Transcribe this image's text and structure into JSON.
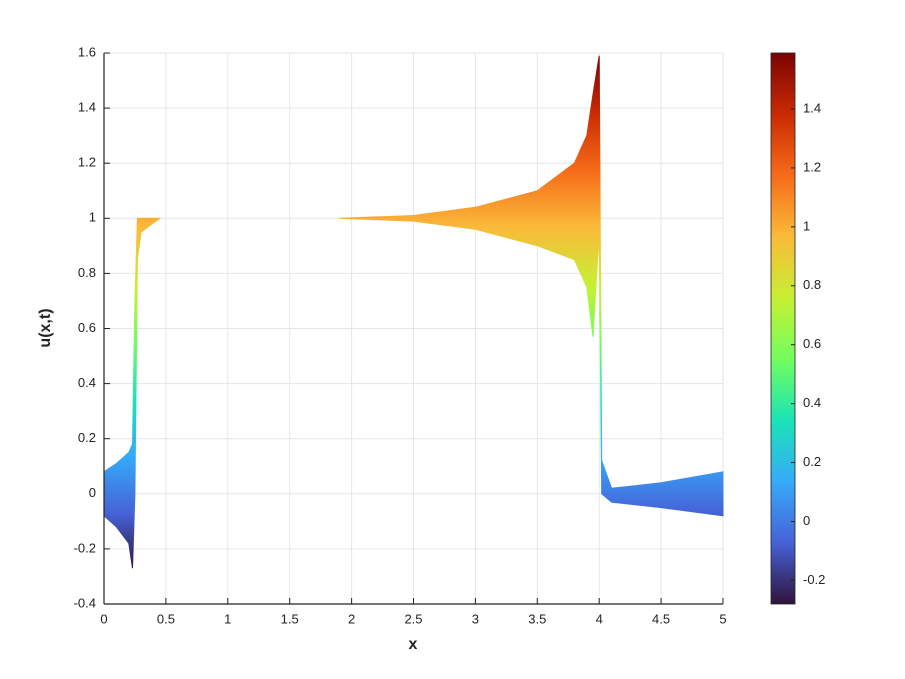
{
  "chart_data": {
    "type": "band",
    "xlabel": "x",
    "ylabel": "u(x,t)",
    "x": [
      0,
      0.1,
      0.2,
      0.23,
      0.25,
      0.27,
      0.3,
      0.45,
      1.0,
      1.9,
      2.5,
      3.0,
      3.5,
      3.8,
      3.9,
      3.95,
      4.0,
      4.02,
      4.1,
      4.5,
      5
    ],
    "series": [
      {
        "values": [
          0.08,
          0.11,
          0.15,
          0.18,
          0.7,
          1.0,
          1.0,
          1.0,
          null,
          1.0,
          1.01,
          1.04,
          1.1,
          1.2,
          1.3,
          1.45,
          1.59,
          0.12,
          0.02,
          0.04,
          0.08
        ]
      },
      {
        "values": [
          -0.08,
          -0.12,
          -0.18,
          -0.27,
          0.0,
          0.85,
          0.95,
          1.0,
          null,
          1.0,
          0.99,
          0.96,
          0.9,
          0.85,
          0.75,
          0.57,
          0.95,
          0.0,
          -0.03,
          -0.05,
          -0.08
        ]
      }
    ],
    "xlim": [
      0,
      5
    ],
    "xticks": [
      0,
      0.5,
      1,
      1.5,
      2,
      2.5,
      3,
      3.5,
      4,
      4.5,
      5
    ],
    "ylim": [
      -0.4,
      1.6
    ],
    "yticks": [
      -0.4,
      -0.2,
      0,
      0.2,
      0.4,
      0.6,
      0.8,
      1,
      1.2,
      1.4,
      1.6
    ],
    "grid": true,
    "colorbar": {
      "clim": [
        -0.28,
        1.59
      ],
      "ticks": [
        -0.2,
        0,
        0.2,
        0.4,
        0.6,
        0.8,
        1,
        1.2,
        1.4
      ]
    },
    "colormap": [
      "#30123b",
      "#4662d7",
      "#36aaf9",
      "#1ae4b6",
      "#72fe5e",
      "#c7ef34",
      "#faba39",
      "#f66b19",
      "#ca2a04",
      "#7a0403"
    ]
  }
}
